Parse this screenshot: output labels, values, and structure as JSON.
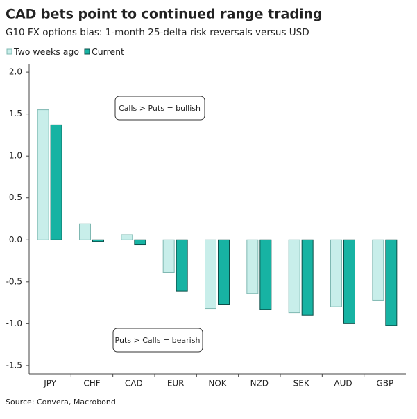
{
  "chart_data": {
    "type": "bar",
    "title": "CAD bets point to continued range trading",
    "subtitle": "G10 FX options bias: 1-month 25-delta risk reversals versus USD",
    "source": "Source: Convera, Macrobond",
    "annotations": [
      "Calls > Puts = bullish",
      "Puts > Calls = bearish"
    ],
    "categories": [
      "JPY",
      "CHF",
      "CAD",
      "EUR",
      "NOK",
      "NZD",
      "SEK",
      "AUD",
      "GBP"
    ],
    "series": [
      {
        "name": "Two weeks ago",
        "color": "#c8eeea",
        "values": [
          1.55,
          0.19,
          0.06,
          -0.39,
          -0.82,
          -0.64,
          -0.87,
          -0.8,
          -0.72
        ]
      },
      {
        "name": "Current",
        "color": "#17b3a3",
        "values": [
          1.37,
          -0.02,
          -0.06,
          -0.61,
          -0.77,
          -0.83,
          -0.9,
          -1.0,
          -1.02
        ]
      }
    ],
    "ylim": [
      -1.6,
      2.1
    ],
    "yticks": [
      {
        "value": 2,
        "label": "2.0"
      },
      {
        "value": 1.5,
        "label": "1.5"
      },
      {
        "value": 1,
        "label": "1.0"
      },
      {
        "value": 0.5,
        "label": "0.5"
      },
      {
        "value": 0,
        "label": "0.0"
      },
      {
        "value": -0.5,
        "label": "-0.5"
      },
      {
        "value": -1,
        "label": "-1.0"
      },
      {
        "value": -1.5,
        "label": "-1.5"
      }
    ],
    "legend": "top-left",
    "grid": false
  }
}
